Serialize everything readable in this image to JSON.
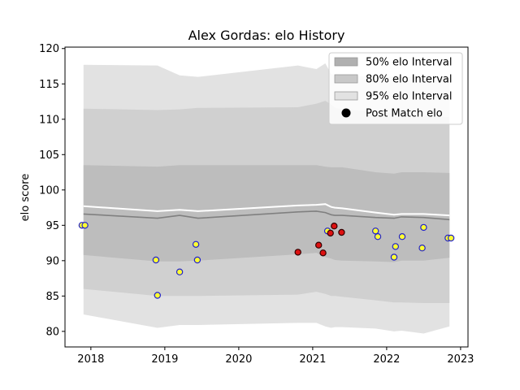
{
  "chart_data": {
    "type": "line",
    "title": "Alex Gordas: elo History",
    "xlabel": "",
    "ylabel": "elo score",
    "xlim": [
      2017.65,
      2023.1
    ],
    "ylim": [
      77.8,
      120.2
    ],
    "xticks": [
      2018,
      2019,
      2020,
      2021,
      2022,
      2023
    ],
    "xtick_labels": [
      "2018",
      "2019",
      "2020",
      "2021",
      "2022",
      "2023"
    ],
    "yticks": [
      80,
      85,
      90,
      95,
      100,
      105,
      110,
      115,
      120
    ],
    "ytick_labels": [
      "80",
      "85",
      "90",
      "95",
      "100",
      "105",
      "110",
      "115",
      "120"
    ],
    "legend_position": "top-right",
    "legend": [
      {
        "label": "50% elo Interval",
        "kind": "band",
        "color": "#b0b0b0"
      },
      {
        "label": "80% elo Interval",
        "kind": "band",
        "color": "#c8c8c8"
      },
      {
        "label": "95% elo Interval",
        "kind": "band",
        "color": "#e2e2e2"
      },
      {
        "label": "Post Match elo",
        "kind": "marker",
        "color": "#000000"
      }
    ],
    "colors": {
      "band95": "#e2e2e2",
      "band80": "#d0d0d0",
      "band50": "#bdbdbd",
      "mean_line": "#808080",
      "upper_line": "#ffffff",
      "win_fill": "#ffff33",
      "win_edge": "#2222cc",
      "loss_fill": "#dd1111",
      "loss_edge": "#330000"
    },
    "series": [
      {
        "key": "band95",
        "x": [
          2017.9,
          2018.9,
          2019.2,
          2019.45,
          2020.8,
          2021.05,
          2021.17,
          2021.25,
          2021.3,
          2021.4,
          2021.85,
          2022.1,
          2022.2,
          2022.5,
          2022.85
        ],
        "upper": [
          117.7,
          117.6,
          116.2,
          116.0,
          117.6,
          117.1,
          117.9,
          116.4,
          116.2,
          116.3,
          115.9,
          116.1,
          116.0,
          116.0,
          115.9
        ],
        "lower": [
          82.4,
          80.5,
          80.9,
          80.9,
          81.2,
          81.2,
          80.7,
          80.5,
          80.6,
          80.6,
          80.4,
          80.0,
          80.1,
          79.7,
          80.7
        ]
      },
      {
        "key": "band80",
        "x": [
          2017.9,
          2018.9,
          2019.2,
          2019.45,
          2020.8,
          2021.05,
          2021.17,
          2021.25,
          2021.3,
          2021.4,
          2021.85,
          2022.1,
          2022.2,
          2022.5,
          2022.85
        ],
        "upper": [
          111.5,
          111.3,
          111.4,
          111.6,
          111.7,
          112.2,
          112.6,
          112.1,
          111.6,
          111.4,
          111.1,
          110.8,
          110.6,
          110.5,
          110.3
        ],
        "lower": [
          86.0,
          85.0,
          85.0,
          85.0,
          85.2,
          85.6,
          85.3,
          85.0,
          85.0,
          84.9,
          84.4,
          84.1,
          84.1,
          84.0,
          84.0
        ]
      },
      {
        "key": "band50",
        "x": [
          2017.9,
          2018.9,
          2019.2,
          2019.45,
          2020.8,
          2021.05,
          2021.17,
          2021.25,
          2021.3,
          2021.4,
          2021.85,
          2022.1,
          2022.2,
          2022.5,
          2022.85
        ],
        "upper": [
          103.5,
          103.3,
          103.5,
          103.5,
          103.5,
          103.5,
          103.3,
          103.2,
          103.2,
          103.2,
          102.5,
          102.3,
          102.5,
          102.5,
          102.4
        ],
        "lower": [
          90.8,
          89.9,
          89.9,
          90.0,
          90.9,
          91.1,
          90.5,
          90.3,
          90.1,
          90.0,
          89.9,
          89.8,
          90.0,
          90.0,
          90.4
        ]
      },
      {
        "key": "mean",
        "x": [
          2017.9,
          2018.9,
          2019.2,
          2019.45,
          2020.8,
          2021.05,
          2021.17,
          2021.25,
          2021.3,
          2021.4,
          2021.85,
          2022.1,
          2022.2,
          2022.5,
          2022.85
        ],
        "values": [
          96.6,
          96.0,
          96.4,
          96.0,
          96.9,
          97.0,
          96.8,
          96.5,
          96.4,
          96.4,
          96.1,
          96.0,
          96.2,
          96.1,
          95.8
        ]
      },
      {
        "key": "upper_line",
        "x": [
          2017.9,
          2018.9,
          2019.2,
          2019.45,
          2020.8,
          2021.05,
          2021.17,
          2021.25,
          2021.3,
          2021.4,
          2021.85,
          2022.1,
          2022.2,
          2022.5,
          2022.85
        ],
        "values": [
          97.7,
          97.0,
          97.2,
          97.0,
          97.8,
          97.9,
          98.0,
          97.6,
          97.5,
          97.4,
          96.8,
          96.5,
          96.6,
          96.6,
          96.4
        ]
      }
    ],
    "points": [
      {
        "x": 2017.88,
        "y": 95.0,
        "result": "win"
      },
      {
        "x": 2017.92,
        "y": 95.0,
        "result": "win"
      },
      {
        "x": 2018.88,
        "y": 90.1,
        "result": "win"
      },
      {
        "x": 2018.9,
        "y": 85.1,
        "result": "win"
      },
      {
        "x": 2019.2,
        "y": 88.4,
        "result": "win"
      },
      {
        "x": 2019.42,
        "y": 92.3,
        "result": "win"
      },
      {
        "x": 2019.44,
        "y": 90.1,
        "result": "win"
      },
      {
        "x": 2020.8,
        "y": 91.2,
        "result": "loss"
      },
      {
        "x": 2021.08,
        "y": 92.2,
        "result": "loss"
      },
      {
        "x": 2021.14,
        "y": 91.1,
        "result": "loss"
      },
      {
        "x": 2021.2,
        "y": 94.2,
        "result": "win"
      },
      {
        "x": 2021.24,
        "y": 93.9,
        "result": "loss"
      },
      {
        "x": 2021.29,
        "y": 94.9,
        "result": "loss"
      },
      {
        "x": 2021.39,
        "y": 94.0,
        "result": "loss"
      },
      {
        "x": 2021.85,
        "y": 94.2,
        "result": "win"
      },
      {
        "x": 2021.88,
        "y": 93.4,
        "result": "win"
      },
      {
        "x": 2022.1,
        "y": 90.5,
        "result": "win"
      },
      {
        "x": 2022.12,
        "y": 92.0,
        "result": "win"
      },
      {
        "x": 2022.21,
        "y": 93.4,
        "result": "win"
      },
      {
        "x": 2022.48,
        "y": 91.8,
        "result": "win"
      },
      {
        "x": 2022.5,
        "y": 94.7,
        "result": "win"
      },
      {
        "x": 2022.83,
        "y": 93.2,
        "result": "win"
      },
      {
        "x": 2022.87,
        "y": 93.2,
        "result": "win"
      }
    ]
  }
}
